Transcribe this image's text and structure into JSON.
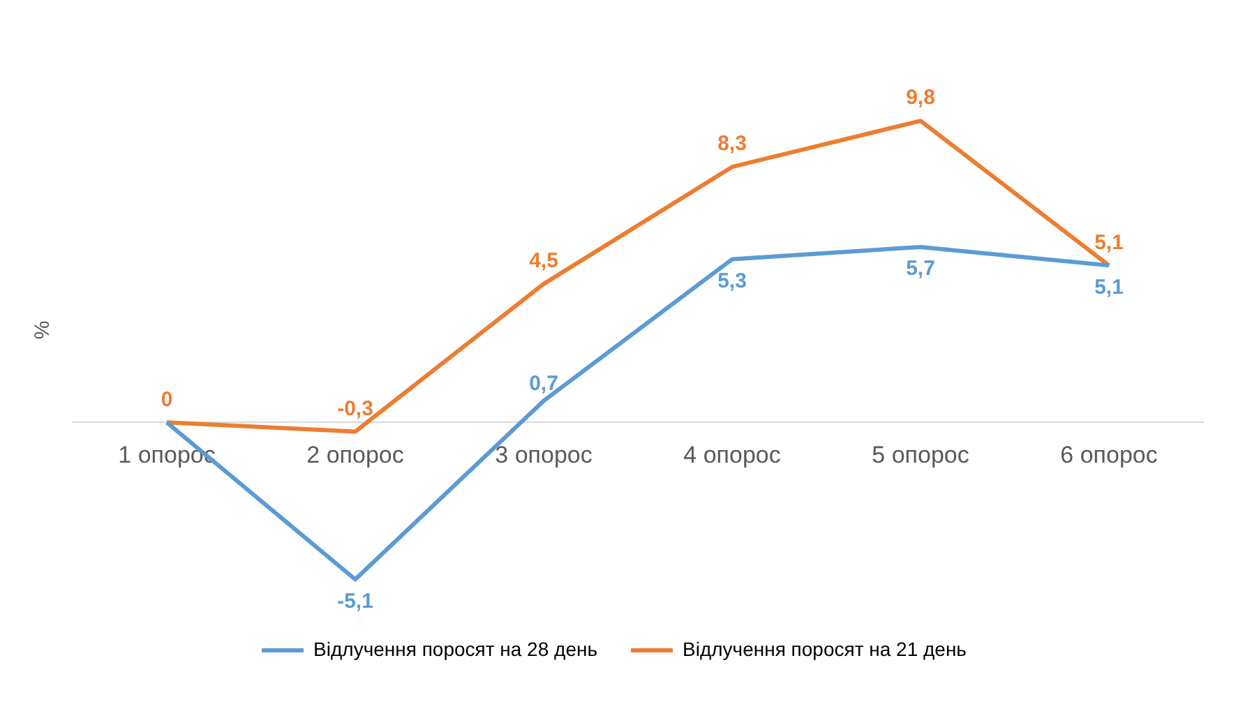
{
  "chart_data": {
    "type": "line",
    "ylabel": "%",
    "categories": [
      "1 опорос",
      "2 опорос",
      "3 опорос",
      "4 опорос",
      "5 опорос",
      "6 опорос"
    ],
    "series": [
      {
        "name": "Відлучення поросят на 28 день",
        "color": "#5b9bd5",
        "values": [
          0,
          -5.1,
          0.7,
          5.3,
          5.7,
          5.1
        ],
        "value_labels": [
          null,
          "-5,1",
          "0,7",
          "5,3",
          "5,7",
          "5,1"
        ]
      },
      {
        "name": "Відлучення поросят на 21 день",
        "color": "#ed7d31",
        "values": [
          0,
          -0.3,
          4.5,
          8.3,
          9.8,
          5.1
        ],
        "value_labels": [
          "0",
          "-0,3",
          "4,5",
          "8,3",
          "9,8",
          "5,1"
        ]
      }
    ],
    "legend": "bottom",
    "grid": false,
    "marker": "none",
    "line_style": "solid"
  }
}
